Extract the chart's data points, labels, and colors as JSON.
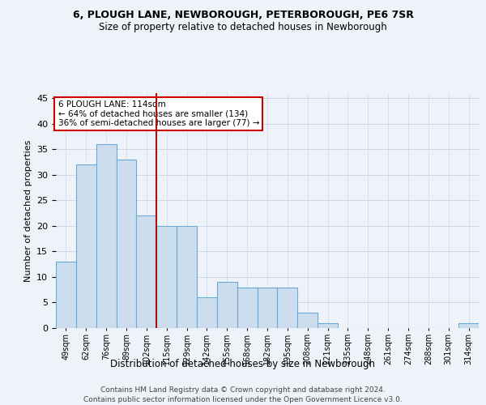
{
  "title1": "6, PLOUGH LANE, NEWBOROUGH, PETERBOROUGH, PE6 7SR",
  "title2": "Size of property relative to detached houses in Newborough",
  "xlabel": "Distribution of detached houses by size in Newborough",
  "ylabel": "Number of detached properties",
  "categories": [
    "49sqm",
    "62sqm",
    "76sqm",
    "89sqm",
    "102sqm",
    "115sqm",
    "129sqm",
    "142sqm",
    "155sqm",
    "168sqm",
    "182sqm",
    "195sqm",
    "208sqm",
    "221sqm",
    "235sqm",
    "248sqm",
    "261sqm",
    "274sqm",
    "288sqm",
    "301sqm",
    "314sqm"
  ],
  "values": [
    13,
    32,
    36,
    33,
    22,
    20,
    20,
    6,
    9,
    8,
    8,
    8,
    3,
    1,
    0,
    0,
    0,
    0,
    0,
    0,
    1
  ],
  "bar_color": "#ccdded",
  "bar_edge_color": "#6aaad4",
  "vline_index": 5,
  "vline_color": "#aa1111",
  "annotation_text": "6 PLOUGH LANE: 114sqm\n← 64% of detached houses are smaller (134)\n36% of semi-detached houses are larger (77) →",
  "annotation_box_color": "#ffffff",
  "annotation_box_edge": "#cc0000",
  "footer1": "Contains HM Land Registry data © Crown copyright and database right 2024.",
  "footer2": "Contains public sector information licensed under the Open Government Licence v3.0.",
  "ylim": [
    0,
    46
  ],
  "bg_color": "#eef2f9",
  "grid_color": "#d0d8e8"
}
